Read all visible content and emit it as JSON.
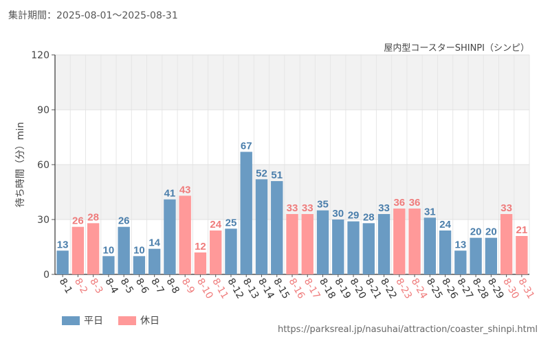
{
  "period_text": "集計期間：2025-08-01～2025-08-31",
  "attraction_name": "屋内型コースターSHINPI（シンピ）",
  "source_url": "https://parksreal.jp/nasuhai/attraction/coaster_shinpi.html",
  "legend": [
    {
      "label": "平日",
      "color": "#6a9bc3"
    },
    {
      "label": "休日",
      "color": "#ff9999"
    }
  ],
  "colors": {
    "weekday": "#6a9bc3",
    "holiday": "#ff9999",
    "weekday_text": "#4a7eab",
    "holiday_text": "#ef7b7b"
  },
  "chart_data": {
    "type": "bar",
    "ylabel": "待ち時間（分）min",
    "ylim": [
      0,
      120
    ],
    "yticks": [
      0,
      30,
      60,
      90,
      120
    ],
    "grid": true,
    "categories": [
      "8-1",
      "8-2",
      "8-3",
      "8-4",
      "8-5",
      "8-6",
      "8-7",
      "8-8",
      "8-9",
      "8-10",
      "8-11",
      "8-12",
      "8-13",
      "8-14",
      "8-15",
      "8-16",
      "8-17",
      "8-18",
      "8-19",
      "8-20",
      "8-21",
      "8-22",
      "8-23",
      "8-24",
      "8-25",
      "8-26",
      "8-27",
      "8-28",
      "8-29",
      "8-30",
      "8-31"
    ],
    "values": [
      13,
      26,
      28,
      10,
      26,
      10,
      14,
      41,
      43,
      12,
      24,
      25,
      67,
      52,
      51,
      33,
      33,
      35,
      30,
      29,
      28,
      33,
      36,
      36,
      31,
      24,
      13,
      20,
      20,
      33,
      21
    ],
    "day_type": [
      "平日",
      "休日",
      "休日",
      "平日",
      "平日",
      "平日",
      "平日",
      "平日",
      "休日",
      "休日",
      "休日",
      "平日",
      "平日",
      "平日",
      "平日",
      "休日",
      "休日",
      "平日",
      "平日",
      "平日",
      "平日",
      "平日",
      "休日",
      "休日",
      "平日",
      "平日",
      "平日",
      "平日",
      "平日",
      "休日",
      "休日"
    ]
  }
}
